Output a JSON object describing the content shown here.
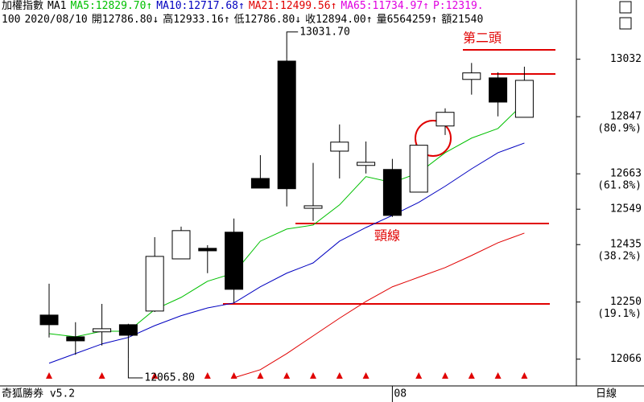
{
  "chart_data": {
    "type": "candlestick",
    "header": {
      "line1": [
        {
          "text": "加權指數",
          "color": "#000000"
        },
        {
          "text": "MA1",
          "color": "#000000"
        },
        {
          "text": "MA5:12829.70↑",
          "color": "#00c000"
        },
        {
          "text": "MA10:12717.68↑",
          "color": "#0000c0"
        },
        {
          "text": "MA21:12499.56↑",
          "color": "#e00000"
        },
        {
          "text": "MA65:11734.97↑",
          "color": "#e000e0"
        },
        {
          "text": "P:12319.",
          "color": "#e000e0"
        }
      ],
      "line2": [
        {
          "text": "100",
          "color": "#000000"
        },
        {
          "text": "2020/08/10",
          "color": "#000000"
        },
        {
          "text": "開12786.80↓",
          "color": "#000000"
        },
        {
          "text": "高12933.16↑",
          "color": "#000000"
        },
        {
          "text": "低12786.80↓",
          "color": "#000000"
        },
        {
          "text": "收12894.00↑",
          "color": "#000000"
        },
        {
          "text": "量6564259↑",
          "color": "#000000"
        },
        {
          "text": "額21540",
          "color": "#000000"
        }
      ]
    },
    "categories": [
      null,
      null,
      null,
      null,
      null,
      null,
      null,
      null,
      null,
      null,
      null,
      null,
      null,
      "08",
      null,
      null,
      null,
      null,
      null
    ],
    "open": [
      12208,
      12138,
      12154,
      12177,
      12221,
      12389,
      12423,
      12475,
      12648,
      13026,
      12552,
      12736,
      12690,
      12677,
      12604,
      12817,
      12967,
      12972,
      12845
    ],
    "high": [
      12309,
      12185,
      12244,
      12180,
      12459,
      12493,
      12433,
      12519,
      12723,
      13031.7,
      12698,
      12822,
      12767,
      12711,
      12755,
      12874,
      13020,
      12990,
      13008
    ],
    "low": [
      12136,
      12080,
      12110,
      12065.8,
      12218,
      12389,
      12343,
      12247,
      12617,
      12558,
      12511,
      12648,
      12664,
      12524,
      12604,
      12788,
      12918,
      12848,
      12845
    ],
    "close": [
      12177,
      12125,
      12164,
      12143,
      12397,
      12480,
      12415,
      12291,
      12617,
      12615,
      12560,
      12765,
      12700,
      12529,
      12755,
      12861,
      12988,
      12894,
      12964
    ],
    "series": [
      {
        "name": "MA5",
        "color": "#00c000",
        "values": [
          12148,
          12138,
          12156,
          12156,
          12226,
          12265,
          12317,
          12343,
          12446,
          12485,
          12498,
          12563,
          12654,
          12635,
          12666,
          12731,
          12778,
          12809,
          12892
        ]
      },
      {
        "name": "MA10",
        "color": "#0000c0",
        "values": [
          12053,
          12084,
          12115,
          12136,
          12174,
          12206,
          12231,
          12247,
          12299,
          12343,
          12376,
          12446,
          12490,
          12529,
          12571,
          12623,
          12679,
          12731,
          12762
        ]
      },
      {
        "name": "MA21",
        "color": "#e00000",
        "values": [
          null,
          null,
          null,
          null,
          null,
          null,
          null,
          12006,
          12032,
          12084,
          12141,
          12198,
          12252,
          12299,
          12330,
          12361,
          12400,
          12441,
          12472
        ]
      }
    ],
    "extremes": [
      {
        "value": 13031.7,
        "label": "13031.70"
      },
      {
        "value": 12065.8,
        "label": "12065.80"
      }
    ],
    "ylim": [
      11985,
      13171
    ],
    "yticks": [
      13032,
      12847,
      12663,
      12549,
      12435,
      12250,
      12066
    ],
    "fib_labels": [
      {
        "value": 12847,
        "label": "(80.9%)"
      },
      {
        "value": 12663,
        "label": "(61.8%)"
      },
      {
        "value": 12435,
        "label": "(38.2%)"
      },
      {
        "value": 12250,
        "label": "(19.1%)"
      }
    ],
    "annotations": {
      "second_head": "第二頭",
      "neckline": "頸線"
    },
    "footer": {
      "app": "奇狐勝券 v5.2",
      "period": "日線"
    }
  }
}
